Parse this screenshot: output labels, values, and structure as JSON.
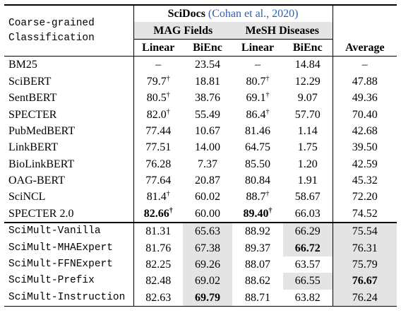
{
  "header": {
    "corner_line1": "Coarse-grained",
    "corner_line2": "Classification",
    "dataset": "SciDocs",
    "dataset_cite": "(Cohan et al., 2020)",
    "group1": "MAG Fields",
    "group2": "MeSH Diseases",
    "col_linear": "Linear",
    "col_bienc": "BiEnc",
    "col_average": "Average"
  },
  "dagger": "†",
  "colors": {
    "shade": "#e4e4e4",
    "cite": "#2d5fb5"
  },
  "baselines": [
    {
      "name": "BM25",
      "mag_linear": "–",
      "mag_bienc": "23.54",
      "mesh_linear": "–",
      "mesh_bienc": "14.84",
      "average": "–"
    },
    {
      "name": "SciBERT",
      "mag_linear": "79.7",
      "mag_bienc": "18.81",
      "mesh_linear": "80.7",
      "mesh_bienc": "12.29",
      "average": "47.88"
    },
    {
      "name": "SentBERT",
      "mag_linear": "80.5",
      "mag_bienc": "38.76",
      "mesh_linear": "69.1",
      "mesh_bienc": "9.07",
      "average": "49.36"
    },
    {
      "name": "SPECTER",
      "mag_linear": "82.0",
      "mag_bienc": "55.49",
      "mesh_linear": "86.4",
      "mesh_bienc": "57.70",
      "average": "70.40"
    },
    {
      "name": "PubMedBERT",
      "mag_linear": "77.44",
      "mag_bienc": "10.67",
      "mesh_linear": "81.46",
      "mesh_bienc": "1.14",
      "average": "42.68"
    },
    {
      "name": "LinkBERT",
      "mag_linear": "77.51",
      "mag_bienc": "14.00",
      "mesh_linear": "64.75",
      "mesh_bienc": "1.75",
      "average": "39.50"
    },
    {
      "name": "BioLinkBERT",
      "mag_linear": "76.28",
      "mag_bienc": "7.37",
      "mesh_linear": "85.50",
      "mesh_bienc": "1.20",
      "average": "42.59"
    },
    {
      "name": "OAG-BERT",
      "mag_linear": "77.64",
      "mag_bienc": "20.87",
      "mesh_linear": "80.84",
      "mesh_bienc": "1.91",
      "average": "45.32"
    },
    {
      "name": "SciNCL",
      "mag_linear": "81.4",
      "mag_bienc": "60.02",
      "mesh_linear": "88.7",
      "mesh_bienc": "58.67",
      "average": "72.20"
    },
    {
      "name": "SPECTER 2.0",
      "mag_linear": "82.66",
      "mag_bienc": "60.00",
      "mesh_linear": "89.40",
      "mesh_bienc": "66.03",
      "average": "74.52"
    }
  ],
  "scimult": [
    {
      "name": "SciMult-Vanilla",
      "mag_linear": "81.31",
      "mag_bienc": "65.63",
      "mesh_linear": "88.92",
      "mesh_bienc": "66.29",
      "average": "75.54"
    },
    {
      "name": "SciMult-MHAExpert",
      "mag_linear": "81.76",
      "mag_bienc": "67.38",
      "mesh_linear": "89.37",
      "mesh_bienc": "66.72",
      "average": "76.31"
    },
    {
      "name": "SciMult-FFNExpert",
      "mag_linear": "82.25",
      "mag_bienc": "69.26",
      "mesh_linear": "88.07",
      "mesh_bienc": "63.57",
      "average": "75.79"
    },
    {
      "name": "SciMult-Prefix",
      "mag_linear": "82.48",
      "mag_bienc": "69.02",
      "mesh_linear": "88.62",
      "mesh_bienc": "66.55",
      "average": "76.67"
    },
    {
      "name": "SciMult-Instruction",
      "mag_linear": "82.63",
      "mag_bienc": "69.79",
      "mesh_linear": "88.71",
      "mesh_bienc": "63.82",
      "average": "76.24"
    }
  ]
}
